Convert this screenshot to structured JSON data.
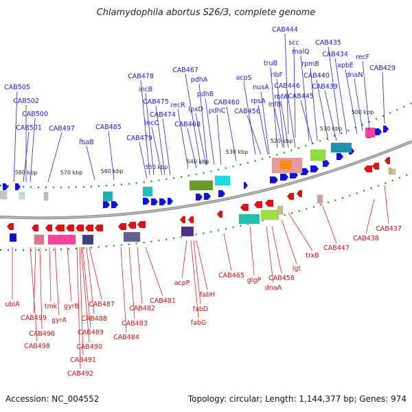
{
  "title": "Chlamydophila abortus S26/3, complete genome",
  "footer": {
    "accession": "Accession: NC_004552",
    "summary": "Topology: circular; Length: 1,144,377 bp; Genes: 974"
  },
  "scale_labels": [
    "500 kbp",
    "510 kbp",
    "520 kbp",
    "530 kbp",
    "540 kbp",
    "550 kbp",
    "560 kbp",
    "570 kbp",
    "580 kbp"
  ],
  "forward_genes": [
    "CAB444",
    "scc",
    "malQ",
    "rpmB",
    "CAB435",
    "CAB434",
    "apbE",
    "recF",
    "dnaN",
    "CAB429",
    "CAB440",
    "CAB439",
    "truB",
    "ribF",
    "CAB446",
    "rbfA",
    "CAB445",
    "infB",
    "acpS",
    "nusA",
    "rpsA",
    "CAB456",
    "CAB467",
    "pdhA",
    "pdhB",
    "lpxD",
    "pdhC",
    "CAB460",
    "recR",
    "CAB468",
    "CAB478",
    "incB",
    "CAB475",
    "incC",
    "CAB474",
    "CAB479",
    "CAB485",
    "fbaB",
    "CAB497",
    "CAB505",
    "CAB502",
    "CAB500",
    "CAB501"
  ],
  "reverse_genes": [
    "ubiA",
    "CAB499",
    "CAB496",
    "CAB498",
    "tmk",
    "gyrA",
    "gyrB",
    "CAB487",
    "CAB488",
    "CAB489",
    "CAB490",
    "CAB491",
    "CAB492",
    "CAB481",
    "CAB482",
    "CAB483",
    "CAB484",
    "acpP",
    "fabH",
    "fabD",
    "fabG",
    "CAB465",
    "glgP",
    "CAB458",
    "dnaA",
    "lgt",
    "trxB",
    "CAB447",
    "CAB438",
    "CAB437"
  ]
}
